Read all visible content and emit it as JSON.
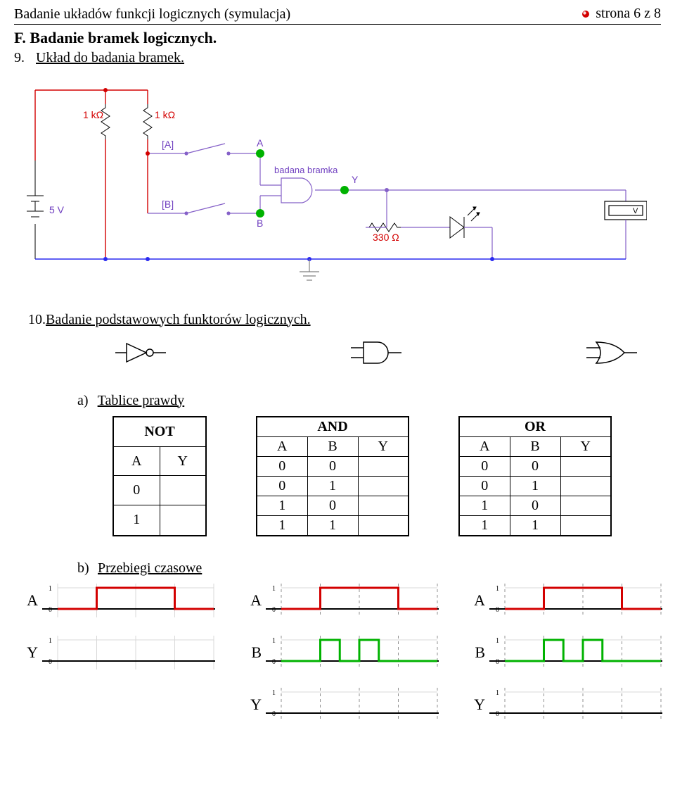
{
  "header": {
    "title_main": "Badanie układów funkcji logicznych",
    "title_paren": "(symulacja)",
    "page_label": "strona 6 z 8"
  },
  "section_f": "F. Badanie bramek logicznych.",
  "item9": {
    "num": "9.",
    "text": "Układ do badania bramek."
  },
  "circuit": {
    "r1_label": "1 kΩ",
    "r2_label": "1 kΩ",
    "sw_a": "[A]",
    "sw_b": "[B]",
    "node_a": "A",
    "node_b": "B",
    "gate_label": "badana bramka",
    "node_y": "Y",
    "vsrc": "5 V",
    "r_out": "330 Ω",
    "meter": "V",
    "colors": {
      "wire_red": "#d30000",
      "wire_blue": "#2a2af0",
      "wire_violet": "#8560c8",
      "node_green": "#00b200",
      "text_violet": "#7040c0",
      "text_red": "#d30000",
      "ground": "#808080"
    }
  },
  "item10": {
    "num": "10.",
    "text": "Badanie podstawowych funktorów logicznych."
  },
  "item_a": {
    "lett": "a)",
    "text": "Tablice prawdy"
  },
  "tables": {
    "not": {
      "title": "NOT",
      "cols": [
        "A",
        "Y"
      ],
      "rows": [
        [
          "0",
          ""
        ],
        [
          "1",
          ""
        ]
      ]
    },
    "and": {
      "title": "AND",
      "cols": [
        "A",
        "B",
        "Y"
      ],
      "rows": [
        [
          "0",
          "0",
          ""
        ],
        [
          "0",
          "1",
          ""
        ],
        [
          "1",
          "0",
          ""
        ],
        [
          "1",
          "1",
          ""
        ]
      ]
    },
    "or": {
      "title": "OR",
      "cols": [
        "A",
        "B",
        "Y"
      ],
      "rows": [
        [
          "0",
          "0",
          ""
        ],
        [
          "0",
          "1",
          ""
        ],
        [
          "1",
          "0",
          ""
        ],
        [
          "1",
          "1",
          ""
        ]
      ]
    }
  },
  "item_b": {
    "lett": "b)",
    "text": "Przebiegi czasowe"
  },
  "timing": {
    "labels": {
      "A": "A",
      "B": "B",
      "Y": "Y",
      "one": "1",
      "zero": "0"
    },
    "colors": {
      "grid": "#d8d8d8",
      "grid_dash": "#909090",
      "axis": "#000000",
      "red": "#d30000",
      "green": "#00b200"
    },
    "col1": [
      {
        "label": "A",
        "type": "red_pulse_single",
        "grid_solid": true
      },
      {
        "label": "Y",
        "type": "empty",
        "grid_solid": true
      }
    ],
    "col2": [
      {
        "label": "A",
        "type": "red_pulse_single",
        "grid_dashed": true
      },
      {
        "label": "B",
        "type": "green_pulse_double",
        "grid_dashed": true
      },
      {
        "label": "Y",
        "type": "empty",
        "grid_dashed": true
      }
    ],
    "col3": [
      {
        "label": "A",
        "type": "red_pulse_single",
        "grid_dashed": true
      },
      {
        "label": "B",
        "type": "green_pulse_double",
        "grid_dashed": true
      },
      {
        "label": "Y",
        "type": "empty",
        "grid_dashed": true
      }
    ]
  }
}
